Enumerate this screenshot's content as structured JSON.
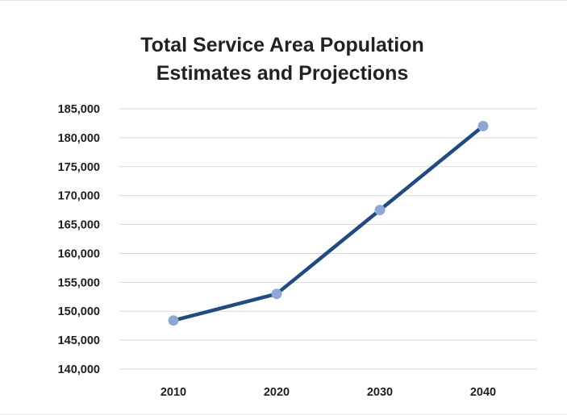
{
  "chart_data": {
    "type": "line",
    "title_lines": [
      "Total Service Area Population",
      "Estimates and Projections"
    ],
    "categories": [
      "2010",
      "2020",
      "2030",
      "2040"
    ],
    "series": [
      {
        "values": [
          148400,
          153000,
          167500,
          182000
        ]
      }
    ],
    "ylim": [
      140000,
      185000
    ],
    "yticks": [
      140000,
      145000,
      150000,
      155000,
      160000,
      165000,
      170000,
      175000,
      180000,
      185000
    ],
    "ytick_labels": [
      "140,000",
      "145,000",
      "150,000",
      "155,000",
      "160,000",
      "165,000",
      "170,000",
      "175,000",
      "180,000",
      "185,000"
    ],
    "grid": true,
    "legend": "none",
    "line_color": "#204a80",
    "marker_color": "#8ea7d5"
  }
}
